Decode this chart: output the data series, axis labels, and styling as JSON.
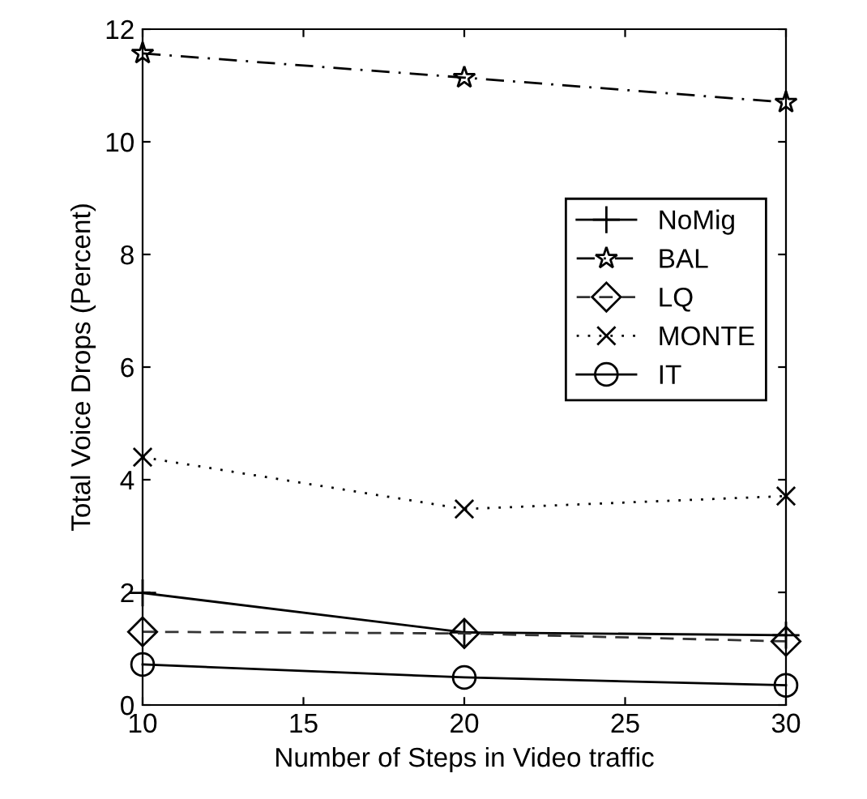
{
  "chart_data": {
    "type": "line",
    "xlabel": "Number of Steps in Video traffic",
    "ylabel": "Total Voice Drops (Percent)",
    "x": [
      10,
      20,
      30
    ],
    "xlim": [
      10,
      30
    ],
    "xticks": [
      10,
      15,
      20,
      25,
      30
    ],
    "ylim": [
      0,
      12
    ],
    "yticks": [
      0,
      2,
      4,
      6,
      8,
      10,
      12
    ],
    "grid": false,
    "legend": "right",
    "series": [
      {
        "name": "NoMig",
        "color": "#000000",
        "values": [
          1.99,
          1.29,
          1.24
        ],
        "marker": "plus",
        "line_style": "solid"
      },
      {
        "name": "BAL",
        "color": "#000000",
        "values": [
          11.57,
          11.14,
          10.7
        ],
        "marker": "star",
        "line_style": "dashdot"
      },
      {
        "name": "LQ",
        "color": "#333333",
        "values": [
          1.3,
          1.27,
          1.13
        ],
        "marker": "diamond",
        "line_style": "dashed"
      },
      {
        "name": "MONTE",
        "color": "#000000",
        "values": [
          4.4,
          3.48,
          3.71
        ],
        "marker": "cross",
        "line_style": "dotted"
      },
      {
        "name": "IT",
        "color": "#000000",
        "values": [
          0.72,
          0.49,
          0.35
        ],
        "marker": "circle",
        "line_style": "solid"
      }
    ]
  }
}
